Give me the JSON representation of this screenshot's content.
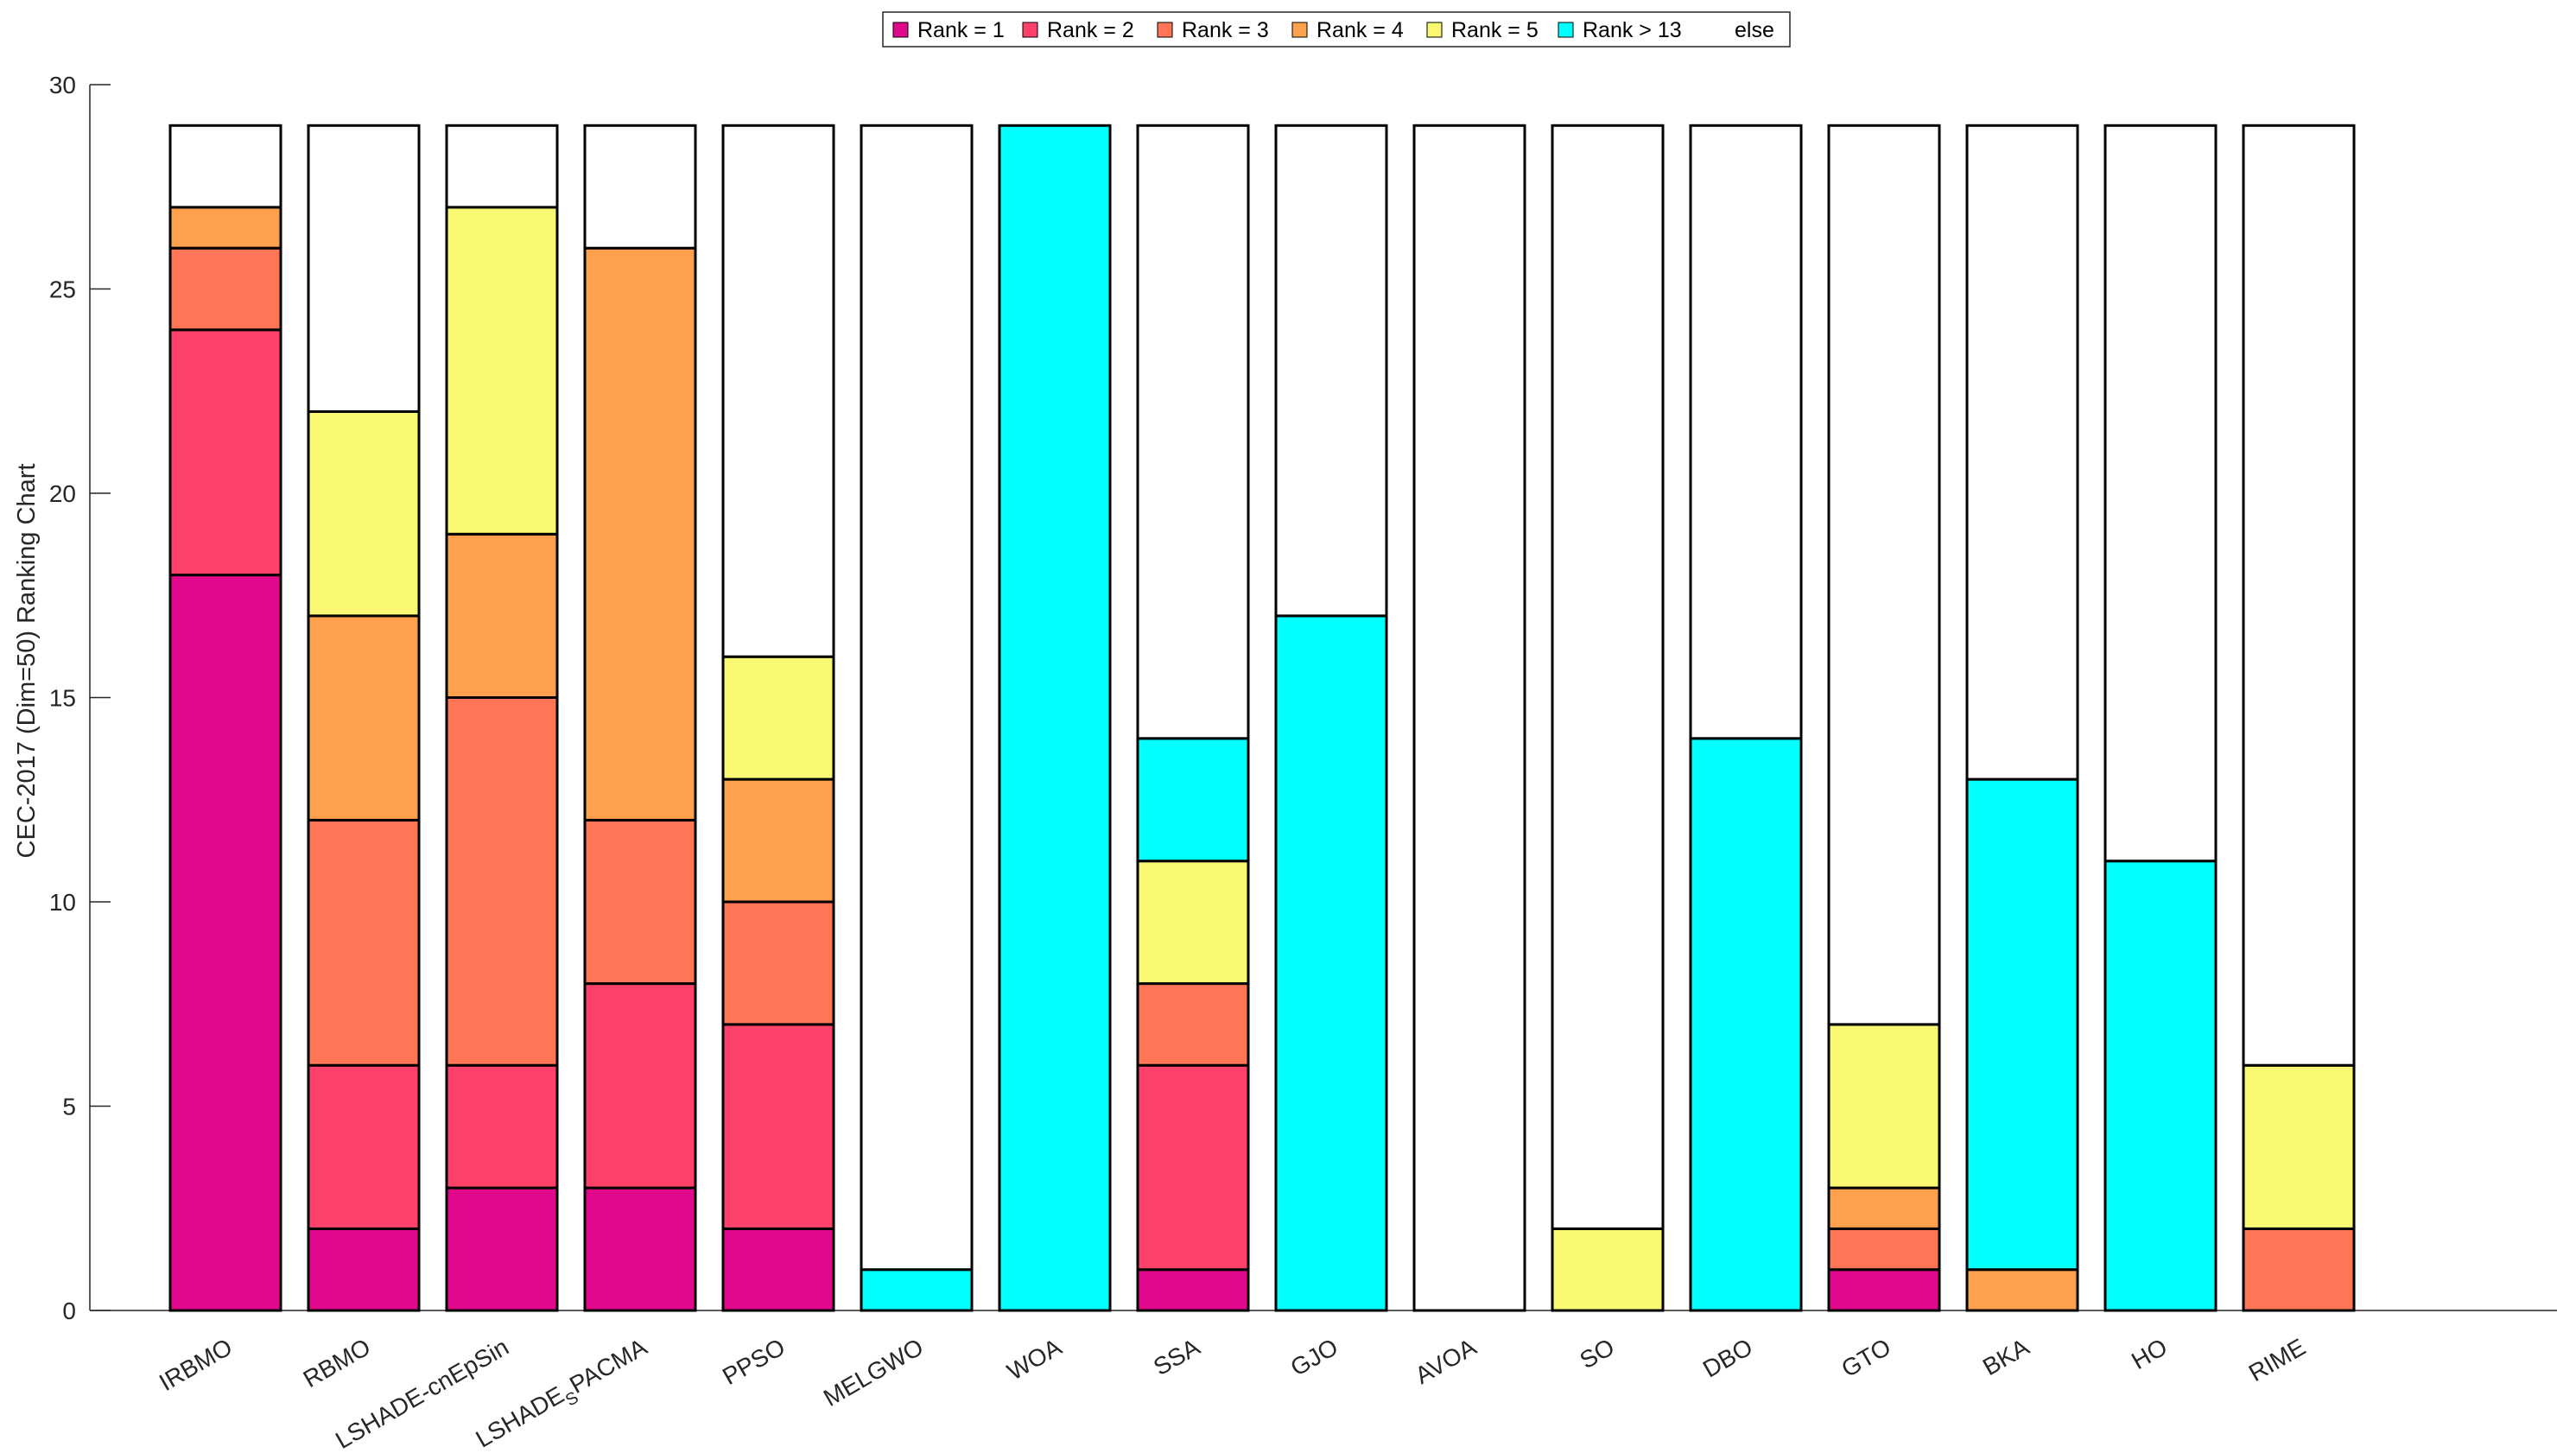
{
  "chart_data": {
    "type": "bar",
    "stacked": true,
    "title": "",
    "xlabel": "",
    "ylabel": "CEC-2017 (Dim=50) Ranking Chart",
    "ylim": [
      0,
      30
    ],
    "yticks": [
      "0",
      "5",
      "10",
      "15",
      "20",
      "25",
      "30"
    ],
    "total_per_bar": 29,
    "categories": [
      "IRBMO",
      "RBMO",
      "LSHADE-cnEpSin",
      "LSHADE_SPACMA",
      "PPSO",
      "MELGWO",
      "WOA",
      "SSA",
      "GJO",
      "AVOA",
      "SO",
      "DBO",
      "GTO",
      "BKA",
      "HO",
      "RIME"
    ],
    "category_labels": [
      {
        "base": "IRBMO"
      },
      {
        "base": "RBMO"
      },
      {
        "base": "LSHADE-cnEpSin"
      },
      {
        "base": "LSHADE",
        "sub": "S",
        "rest": "PACMA"
      },
      {
        "base": "PPSO"
      },
      {
        "base": "MELGWO"
      },
      {
        "base": "WOA"
      },
      {
        "base": "SSA"
      },
      {
        "base": "GJO"
      },
      {
        "base": "AVOA"
      },
      {
        "base": "SO"
      },
      {
        "base": "DBO"
      },
      {
        "base": "GTO"
      },
      {
        "base": "BKA"
      },
      {
        "base": "HO"
      },
      {
        "base": "RIME"
      }
    ],
    "series": [
      {
        "name": "Rank = 1",
        "color": "#e0098b",
        "values": [
          18,
          2,
          3,
          3,
          2,
          0,
          0,
          1,
          0,
          0,
          0,
          0,
          1,
          0,
          0,
          0
        ]
      },
      {
        "name": "Rank = 2",
        "color": "#ff416c",
        "values": [
          6,
          4,
          3,
          5,
          5,
          0,
          0,
          5,
          0,
          0,
          0,
          0,
          0,
          0,
          0,
          0
        ]
      },
      {
        "name": "Rank = 3",
        "color": "#ff7556",
        "values": [
          2,
          6,
          9,
          4,
          3,
          0,
          0,
          2,
          0,
          0,
          0,
          0,
          1,
          0,
          0,
          2
        ]
      },
      {
        "name": "Rank = 4",
        "color": "#ffa04d",
        "values": [
          1,
          5,
          4,
          14,
          3,
          0,
          0,
          0,
          0,
          0,
          0,
          0,
          1,
          1,
          0,
          0
        ]
      },
      {
        "name": "Rank = 5",
        "color": "#f8f872",
        "values": [
          0,
          5,
          8,
          0,
          3,
          0,
          0,
          3,
          0,
          0,
          2,
          0,
          4,
          0,
          0,
          4
        ]
      },
      {
        "name": "Rank > 13",
        "color": "#00ffff",
        "values": [
          0,
          0,
          0,
          0,
          0,
          1,
          29,
          3,
          17,
          0,
          0,
          14,
          0,
          12,
          11,
          0
        ]
      },
      {
        "name": "else",
        "color": "#ffffff",
        "values": [
          2,
          7,
          2,
          3,
          13,
          28,
          0,
          15,
          12,
          29,
          27,
          15,
          22,
          16,
          18,
          23
        ]
      }
    ],
    "legend_position": "top-center"
  }
}
